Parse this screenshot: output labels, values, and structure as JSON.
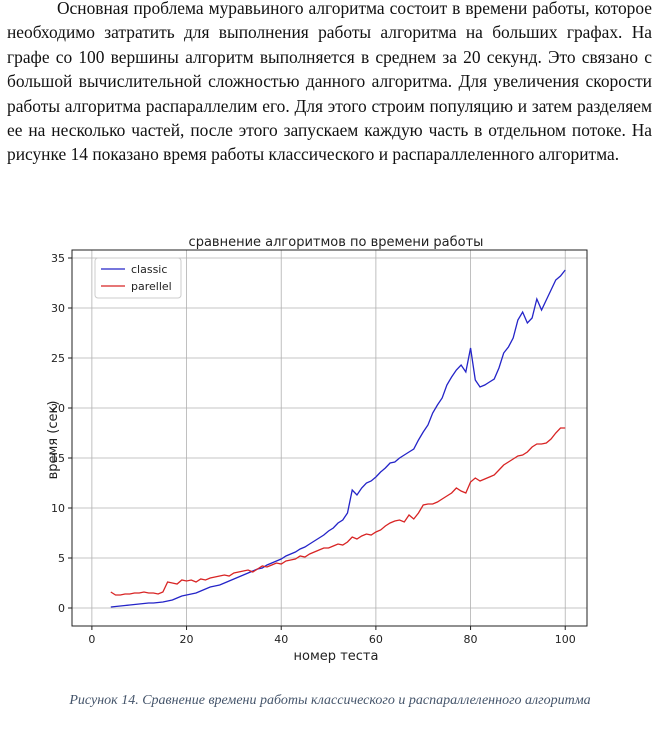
{
  "paragraph": "Основная проблема муравьиного алгоритма состоит в времени работы, которое необходимо затратить для выполнения работы алгоритма на больших графах. На графе со 100 вершины алгоритм выполняется в среднем за 20 секунд. Это связано с большой вычислительной сложностью данного алгоритма. Для увеличения скорости работы алгоритма распараллелим его. Для этого строим популяцию и затем разделяем ее на несколько частей, после этого запускаем каждую часть в отдельном потоке. На рисунке 14 показано время работы классического и распараллеленного алгоритма.",
  "chart_data": {
    "type": "line",
    "title": "сравнение алгоритмов по времени работы",
    "xlabel": "номер теста",
    "ylabel": "время (сек)",
    "x": [
      4,
      5,
      6,
      7,
      8,
      9,
      10,
      11,
      12,
      13,
      14,
      15,
      16,
      17,
      18,
      19,
      20,
      21,
      22,
      23,
      24,
      25,
      26,
      27,
      28,
      29,
      30,
      31,
      32,
      33,
      34,
      35,
      36,
      37,
      38,
      39,
      40,
      41,
      42,
      43,
      44,
      45,
      46,
      47,
      48,
      49,
      50,
      51,
      52,
      53,
      54,
      55,
      56,
      57,
      58,
      59,
      60,
      61,
      62,
      63,
      64,
      65,
      66,
      67,
      68,
      69,
      70,
      71,
      72,
      73,
      74,
      75,
      76,
      77,
      78,
      79,
      80,
      81,
      82,
      83,
      84,
      85,
      86,
      87,
      88,
      89,
      90,
      91,
      92,
      93,
      94,
      95,
      96,
      97,
      98,
      99,
      100
    ],
    "series": [
      {
        "name": "classic",
        "color": "#2424c8",
        "values": [
          0.1,
          0.15,
          0.2,
          0.25,
          0.3,
          0.35,
          0.4,
          0.45,
          0.5,
          0.5,
          0.55,
          0.6,
          0.7,
          0.8,
          1.0,
          1.2,
          1.3,
          1.4,
          1.5,
          1.7,
          1.9,
          2.1,
          2.2,
          2.3,
          2.5,
          2.7,
          2.9,
          3.1,
          3.3,
          3.5,
          3.7,
          3.9,
          4.0,
          4.3,
          4.5,
          4.7,
          4.9,
          5.2,
          5.4,
          5.6,
          5.9,
          6.1,
          6.4,
          6.7,
          7.0,
          7.3,
          7.7,
          8.0,
          8.5,
          8.8,
          9.5,
          11.8,
          11.3,
          12.0,
          12.5,
          12.7,
          13.1,
          13.6,
          14.0,
          14.5,
          14.6,
          15.0,
          15.3,
          15.6,
          15.9,
          16.8,
          17.6,
          18.3,
          19.5,
          20.3,
          21.0,
          22.3,
          23.1,
          23.8,
          24.3,
          23.6,
          26.0,
          22.8,
          22.1,
          22.3,
          22.6,
          22.9,
          24.0,
          25.5,
          26.1,
          27.0,
          28.8,
          29.6,
          28.5,
          29.0,
          30.9,
          29.8,
          30.8,
          31.8,
          32.8,
          33.2,
          33.8
        ]
      },
      {
        "name": "parellel",
        "color": "#d82424",
        "values": [
          1.6,
          1.3,
          1.3,
          1.4,
          1.4,
          1.5,
          1.5,
          1.6,
          1.5,
          1.5,
          1.4,
          1.6,
          2.6,
          2.5,
          2.4,
          2.8,
          2.7,
          2.8,
          2.6,
          2.9,
          2.8,
          3.0,
          3.1,
          3.2,
          3.3,
          3.2,
          3.5,
          3.6,
          3.7,
          3.8,
          3.6,
          3.9,
          4.2,
          4.1,
          4.3,
          4.5,
          4.4,
          4.7,
          4.8,
          4.9,
          5.2,
          5.1,
          5.4,
          5.6,
          5.8,
          6.0,
          6.0,
          6.2,
          6.4,
          6.3,
          6.6,
          7.1,
          6.9,
          7.2,
          7.4,
          7.3,
          7.6,
          7.8,
          8.2,
          8.5,
          8.7,
          8.8,
          8.6,
          9.3,
          8.9,
          9.5,
          10.3,
          10.4,
          10.4,
          10.6,
          10.9,
          11.2,
          11.5,
          12.0,
          11.7,
          11.5,
          12.6,
          13.0,
          12.7,
          12.9,
          13.1,
          13.3,
          13.8,
          14.3,
          14.6,
          14.9,
          15.2,
          15.3,
          15.6,
          16.1,
          16.4,
          16.4,
          16.5,
          16.9,
          17.5,
          18.0,
          18.0
        ]
      }
    ],
    "xlim": [
      -4.2,
      104.6
    ],
    "xticks": [
      0,
      20,
      40,
      60,
      80,
      100
    ],
    "ylim": [
      -1.8,
      35.8
    ],
    "yticks": [
      0,
      5,
      10,
      15,
      20,
      25,
      30,
      35
    ],
    "grid": true,
    "legend": "upper left"
  },
  "caption": "Рисунок 14. Сравнение времени работы классического и распараллеленного алгоритма"
}
